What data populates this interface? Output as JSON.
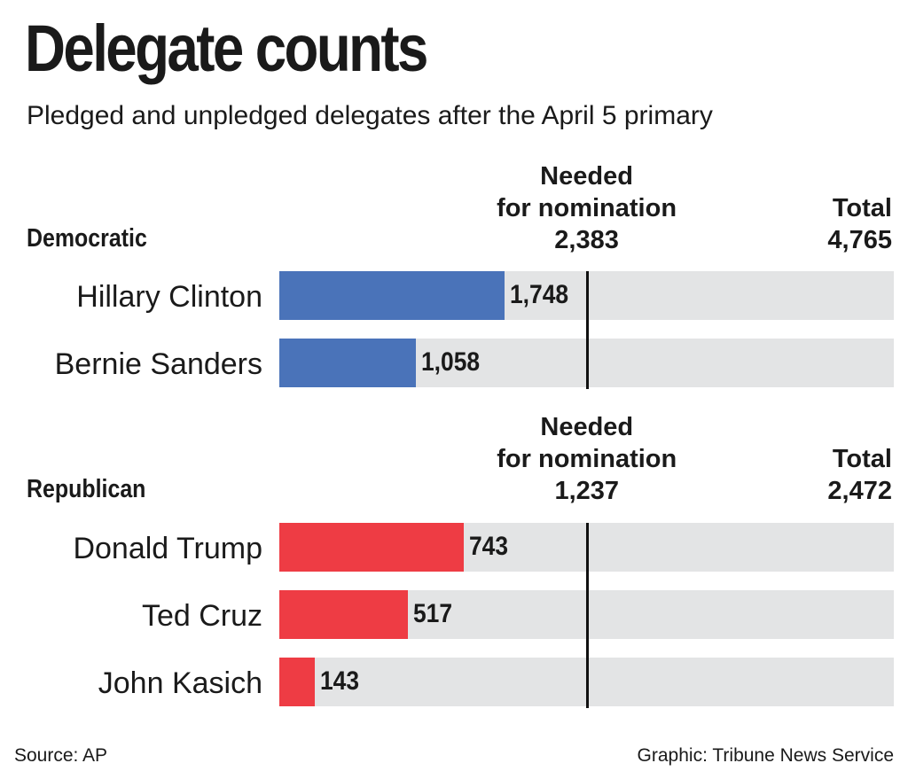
{
  "title": "Delegate counts",
  "subtitle": "Pledged and unpledged delegates after the April 5 primary",
  "source": "Source: AP",
  "credit": "Graphic: Tribune News Service",
  "colors": {
    "democratic": "#4a73b9",
    "republican": "#ee3c44",
    "track": "#e3e4e5"
  },
  "chart_data": [
    {
      "type": "bar",
      "orientation": "horizontal",
      "group": "Democratic",
      "needed_label": [
        "Needed",
        "for nomination"
      ],
      "needed": 2383,
      "needed_text": "2,383",
      "total_label": "Total",
      "total": 4765,
      "total_text": "4,765",
      "categories": [
        "Hillary Clinton",
        "Bernie Sanders"
      ],
      "values": [
        1748,
        1058
      ],
      "value_labels": [
        "1,748",
        "1,058"
      ]
    },
    {
      "type": "bar",
      "orientation": "horizontal",
      "group": "Republican",
      "needed_label": [
        "Needed",
        "for nomination"
      ],
      "needed": 1237,
      "needed_text": "1,237",
      "total_label": "Total",
      "total": 2472,
      "total_text": "2,472",
      "categories": [
        "Donald Trump",
        "Ted Cruz",
        "John Kasich"
      ],
      "values": [
        743,
        517,
        143
      ],
      "value_labels": [
        "743",
        "517",
        "143"
      ]
    }
  ]
}
